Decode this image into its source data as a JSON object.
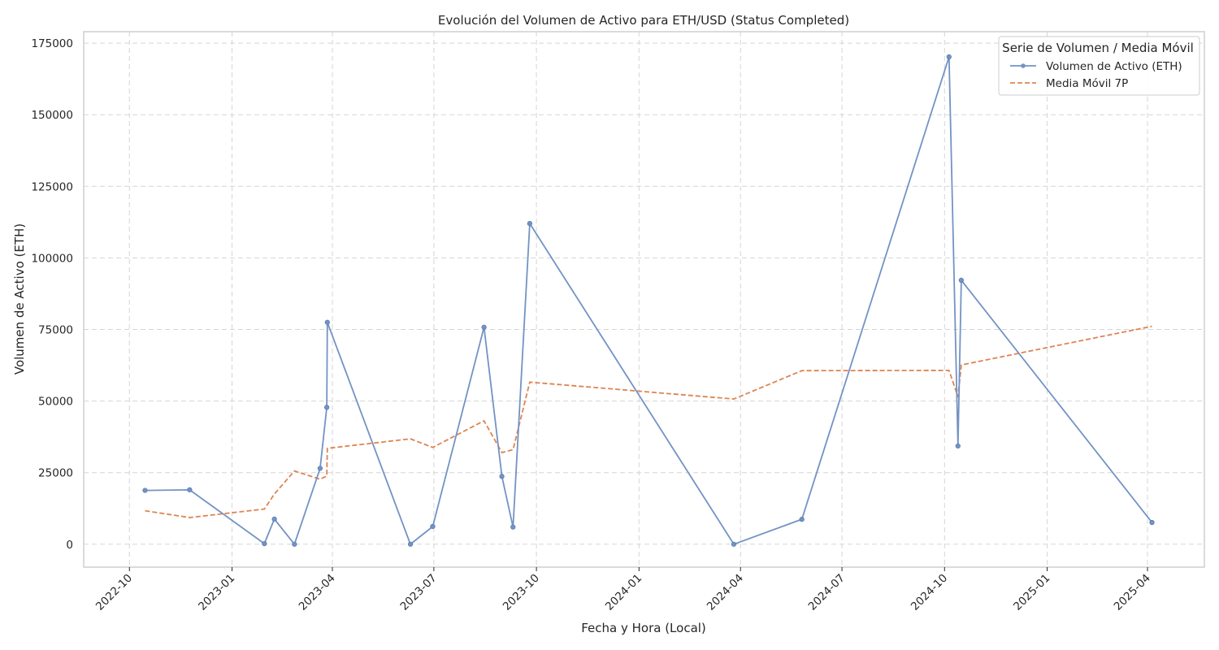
{
  "chart_data": {
    "type": "line",
    "title": "Evolución del Volumen de Activo para ETH/USD (Status Completed)",
    "xlabel": "Fecha y Hora (Local)",
    "ylabel": "Volumen de Activo (ETH)",
    "xlim": [
      "2022-08-21",
      "2025-05-22"
    ],
    "ylim": [
      -8000,
      179000
    ],
    "x_ticks": [
      "2022-10",
      "2023-01",
      "2023-04",
      "2023-07",
      "2023-10",
      "2024-01",
      "2024-04",
      "2024-07",
      "2024-10",
      "2025-01",
      "2025-04"
    ],
    "y_ticks": [
      0,
      25000,
      50000,
      75000,
      100000,
      125000,
      150000,
      175000
    ],
    "grid": true,
    "legend": {
      "title": "Serie de Volumen / Media Móvil",
      "placement": "top-right"
    },
    "series": [
      {
        "name": "Volumen de Activo (ETH)",
        "color": "#7393c4",
        "style": "solid",
        "markers": true,
        "points": [
          [
            "2022-10-15",
            18800
          ],
          [
            "2022-11-24",
            19000
          ],
          [
            "2023-01-30",
            200
          ],
          [
            "2023-02-08",
            8800
          ],
          [
            "2023-02-26",
            0
          ],
          [
            "2023-03-21",
            26500
          ],
          [
            "2023-03-27",
            47800
          ],
          [
            "2023-03-27 12:00",
            77500
          ],
          [
            "2023-06-10",
            0
          ],
          [
            "2023-06-30",
            6200
          ],
          [
            "2023-08-15",
            75800
          ],
          [
            "2023-08-31",
            23700
          ],
          [
            "2023-09-10",
            6000
          ],
          [
            "2023-09-25",
            112000
          ],
          [
            "2024-03-26",
            0
          ],
          [
            "2024-05-26",
            8700
          ],
          [
            "2024-10-05",
            170200
          ],
          [
            "2024-10-13",
            34300
          ],
          [
            "2024-10-16",
            92200
          ],
          [
            "2025-04-05",
            7600
          ]
        ]
      },
      {
        "name": "Media Móvil 7P",
        "color": "#dd8452",
        "style": "dashed",
        "markers": false,
        "points": [
          [
            "2022-10-15",
            11700
          ],
          [
            "2022-11-24",
            9300
          ],
          [
            "2023-01-30",
            12300
          ],
          [
            "2023-02-08",
            17500
          ],
          [
            "2023-02-26",
            25600
          ],
          [
            "2023-03-21",
            22700
          ],
          [
            "2023-03-27",
            23800
          ],
          [
            "2023-03-27 12:00",
            33500
          ],
          [
            "2023-06-10",
            36800
          ],
          [
            "2023-06-30",
            33800
          ],
          [
            "2023-08-15",
            43100
          ],
          [
            "2023-08-31",
            32000
          ],
          [
            "2023-09-10",
            33000
          ],
          [
            "2023-09-25",
            56600
          ],
          [
            "2024-03-26",
            50700
          ],
          [
            "2024-05-26",
            60600
          ],
          [
            "2024-10-05",
            60700
          ],
          [
            "2024-10-13",
            51500
          ],
          [
            "2024-10-16",
            62600
          ],
          [
            "2025-04-05",
            76100
          ]
        ]
      }
    ]
  }
}
